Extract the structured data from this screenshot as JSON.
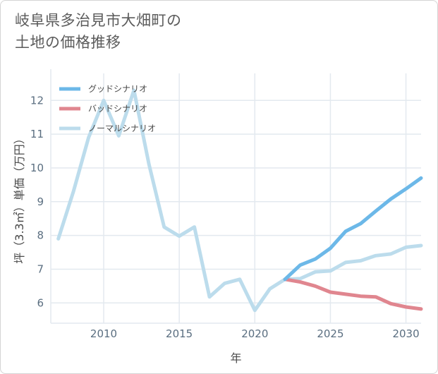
{
  "title_lines": [
    "岐阜県多治見市大畑町の",
    "土地の価格推移"
  ],
  "chart_data": {
    "type": "line",
    "xlabel": "年",
    "ylabel": "坪（3.3㎡）単価（万円）",
    "xlim": [
      2006.5,
      2031
    ],
    "ylim": [
      5.4,
      12.8
    ],
    "xticks": [
      2010,
      2015,
      2020,
      2025,
      2030
    ],
    "yticks": [
      6,
      7,
      8,
      9,
      10,
      11,
      12
    ],
    "grid": true,
    "legend_position": "top-left",
    "series": [
      {
        "name": "グッドシナリオ",
        "color": "#6cb8e8",
        "x": [
          2022,
          2023,
          2024,
          2025,
          2026,
          2027,
          2028,
          2029,
          2030,
          2031
        ],
        "y": [
          6.7,
          7.12,
          7.3,
          7.62,
          8.12,
          8.35,
          8.72,
          9.08,
          9.38,
          9.7
        ]
      },
      {
        "name": "バッドシナリオ",
        "color": "#e0868f",
        "x": [
          2022,
          2023,
          2024,
          2025,
          2026,
          2027,
          2028,
          2029,
          2030,
          2031
        ],
        "y": [
          6.7,
          6.62,
          6.5,
          6.32,
          6.26,
          6.2,
          6.18,
          5.98,
          5.88,
          5.82
        ]
      },
      {
        "name": "ノーマルシナリオ",
        "color": "#bcdcec",
        "x": [
          2007,
          2008,
          2009,
          2010,
          2011,
          2012,
          2013,
          2014,
          2015,
          2016,
          2017,
          2018,
          2019,
          2020,
          2021,
          2022,
          2023,
          2024,
          2025,
          2026,
          2027,
          2028,
          2029,
          2030,
          2031
        ],
        "y": [
          7.9,
          9.3,
          10.9,
          12.0,
          10.95,
          12.3,
          10.1,
          8.25,
          7.98,
          8.25,
          6.18,
          6.58,
          6.7,
          5.78,
          6.42,
          6.7,
          6.72,
          6.92,
          6.95,
          7.2,
          7.25,
          7.4,
          7.45,
          7.65,
          7.7
        ]
      }
    ]
  }
}
